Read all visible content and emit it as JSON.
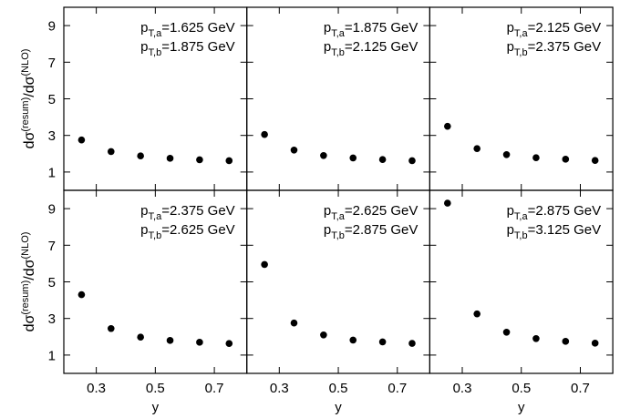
{
  "chart_data": {
    "type": "scatter",
    "layout": "2x3 grid of panels with shared axes",
    "xlabel": "y",
    "ylabel_base": "dσ",
    "ylabel_num_sup": "(resum)",
    "ylabel_den": "/dσ",
    "ylabel_den_sup": "(NLO)",
    "xlim": [
      0.19,
      0.81
    ],
    "ylim": [
      0,
      10
    ],
    "xticks": [
      0.3,
      0.5,
      0.7
    ],
    "xtick_labels": [
      "0.3",
      "0.5",
      "0.7"
    ],
    "yticks": [
      1,
      3,
      5,
      7,
      9
    ],
    "ytick_labels": [
      "1",
      "3",
      "5",
      "7",
      "9"
    ],
    "x": [
      0.25,
      0.35,
      0.45,
      0.55,
      0.65,
      0.75
    ],
    "panels": [
      {
        "label_a": {
          "base": "p",
          "sub": "T,a",
          "value": "=1.625 GeV"
        },
        "label_b": {
          "base": "p",
          "sub": "T,b",
          "value": "=1.875 GeV"
        },
        "values": [
          2.75,
          2.12,
          1.88,
          1.75,
          1.67,
          1.62
        ]
      },
      {
        "label_a": {
          "base": "p",
          "sub": "T,a",
          "value": "=1.875 GeV"
        },
        "label_b": {
          "base": "p",
          "sub": "T,b",
          "value": "=2.125 GeV"
        },
        "values": [
          3.05,
          2.2,
          1.9,
          1.77,
          1.68,
          1.62
        ]
      },
      {
        "label_a": {
          "base": "p",
          "sub": "T,a",
          "value": "=2.125 GeV"
        },
        "label_b": {
          "base": "p",
          "sub": "T,b",
          "value": "=2.375 GeV"
        },
        "values": [
          3.5,
          2.28,
          1.95,
          1.78,
          1.7,
          1.63
        ]
      },
      {
        "label_a": {
          "base": "p",
          "sub": "T,a",
          "value": "=2.375 GeV"
        },
        "label_b": {
          "base": "p",
          "sub": "T,b",
          "value": "=2.625 GeV"
        },
        "values": [
          4.3,
          2.45,
          1.98,
          1.8,
          1.7,
          1.63
        ]
      },
      {
        "label_a": {
          "base": "p",
          "sub": "T,a",
          "value": "=2.625 GeV"
        },
        "label_b": {
          "base": "p",
          "sub": "T,b",
          "value": "=2.875 GeV"
        },
        "values": [
          5.95,
          2.75,
          2.1,
          1.82,
          1.72,
          1.64
        ]
      },
      {
        "label_a": {
          "base": "p",
          "sub": "T,a",
          "value": "=2.875 GeV"
        },
        "label_b": {
          "base": "p",
          "sub": "T,b",
          "value": "=3.125 GeV"
        },
        "values": [
          9.3,
          3.25,
          2.25,
          1.9,
          1.75,
          1.65
        ]
      }
    ]
  }
}
